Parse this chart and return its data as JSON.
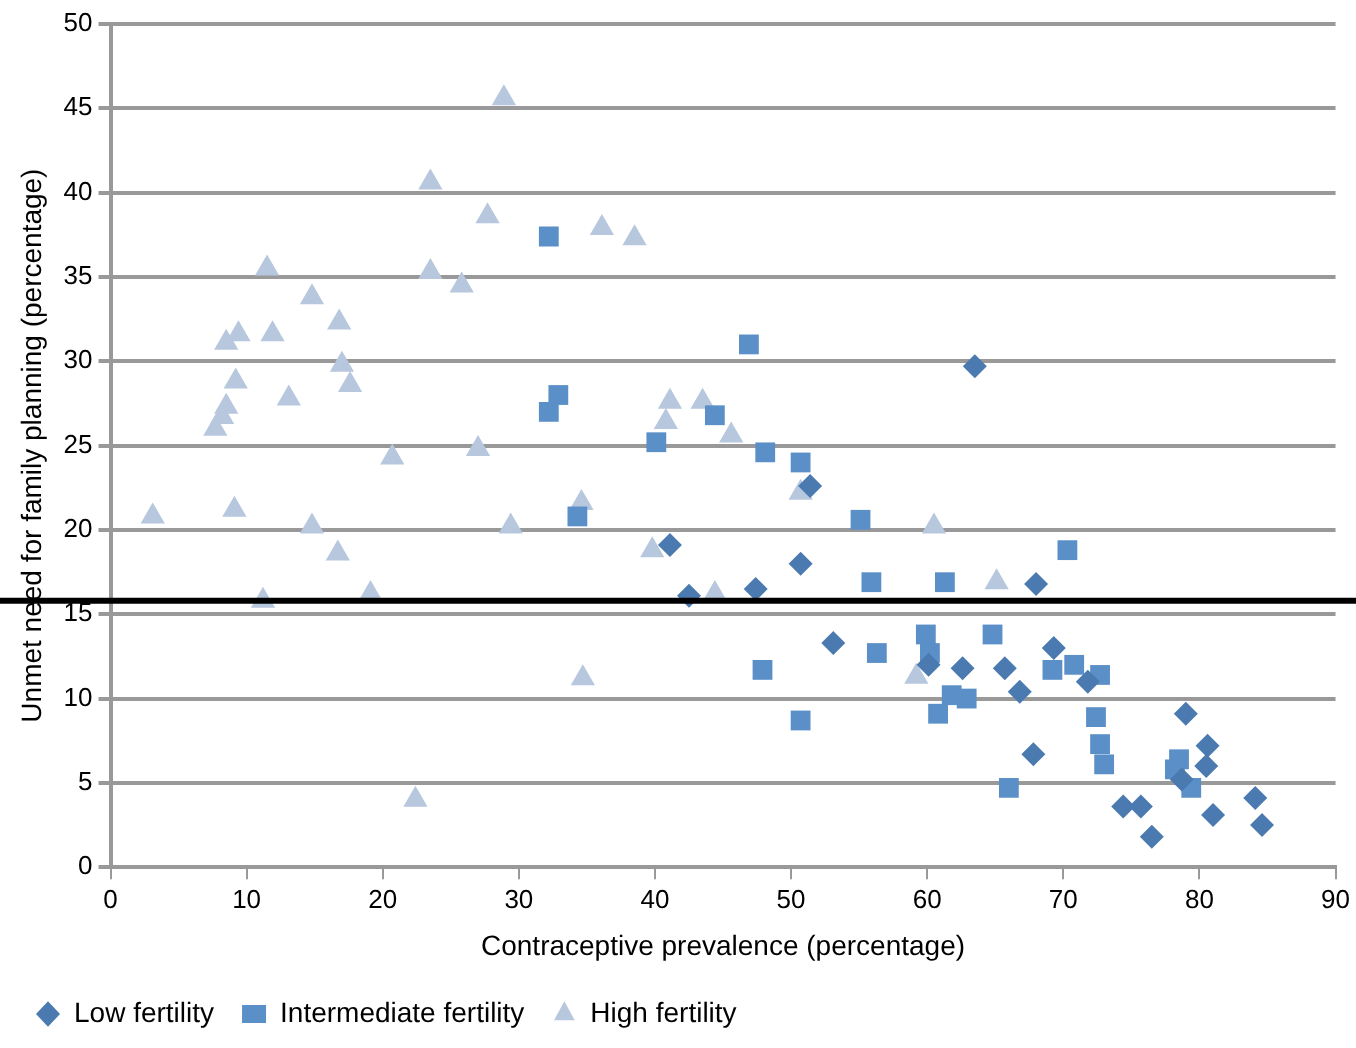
{
  "chart_data": {
    "type": "scatter",
    "xlabel": "Contraceptive prevalence (percentage)",
    "ylabel": "Unmet need for family planning (percentage)",
    "xlim": [
      0,
      90
    ],
    "xticks": [
      0,
      10,
      20,
      30,
      40,
      50,
      60,
      70,
      80,
      90
    ],
    "ylim": [
      0,
      50
    ],
    "yticks": [
      0,
      5,
      10,
      15,
      20,
      25,
      30,
      35,
      40,
      45,
      50
    ],
    "grid": "y",
    "legend": "bottom left",
    "ref_lines": [
      {
        "axis": "y",
        "value": 15.8,
        "color": "#000000"
      }
    ],
    "series": [
      {
        "name": "Low fertility",
        "color": "#4a7ab0",
        "marker": "diamond",
        "x": [
          41.1,
          42.5,
          47.4,
          50.7,
          51.4,
          53.1,
          63.5,
          60.1,
          62.6,
          65.7,
          66.8,
          68,
          69.3,
          71.8,
          67.8,
          79,
          80.6,
          80.5,
          78.7,
          74.4,
          75.7,
          76.5,
          81,
          84.1,
          84.6
        ],
        "values": [
          19.1,
          16.1,
          16.5,
          18,
          22.6,
          13.3,
          29.7,
          12,
          11.8,
          11.8,
          10.4,
          16.8,
          13,
          11,
          6.7,
          9.1,
          7.2,
          6,
          5.2,
          3.6,
          3.6,
          1.8,
          3.1,
          4.1,
          2.5
        ]
      },
      {
        "name": "Intermediate fertility",
        "color": "#5b8fc7",
        "marker": "square",
        "x": [
          32.2,
          32.9,
          32.2,
          34.3,
          46.9,
          44.4,
          40.1,
          48.1,
          50.7,
          55.1,
          55.9,
          61.3,
          70.3,
          47.9,
          50.7,
          56.3,
          59.9,
          60.2,
          60.8,
          61.8,
          62.9,
          64.8,
          66,
          69.2,
          70.8,
          72.7,
          72.4,
          72.7,
          73,
          78.5,
          78.2,
          79.4
        ],
        "values": [
          37.4,
          28,
          27,
          20.8,
          31,
          26.8,
          25.2,
          24.6,
          24,
          20.6,
          16.9,
          16.9,
          18.8,
          11.7,
          8.7,
          12.7,
          13.8,
          12.7,
          9.1,
          10.2,
          10,
          13.8,
          4.7,
          11.7,
          12,
          11.4,
          8.9,
          7.3,
          6.1,
          6.4,
          5.8,
          4.7
        ]
      },
      {
        "name": "High fertility",
        "color": "#b7c7de",
        "marker": "triangle",
        "x": [
          28.9,
          23.5,
          27.7,
          11.5,
          23.5,
          25.8,
          14.8,
          16.8,
          9.4,
          8.5,
          11.9,
          17,
          17.6,
          9.2,
          13.1,
          8.5,
          8.2,
          7.7,
          20.7,
          27,
          36.1,
          38.5,
          41.1,
          43.5,
          40.8,
          45.6,
          50.7,
          60.5,
          39.8,
          3.1,
          9.1,
          14.8,
          16.7,
          11.2,
          19.1,
          29.4,
          34.6,
          34.7,
          22.4,
          65.1,
          59.2,
          44.4
        ],
        "values": [
          45.6,
          40.6,
          38.6,
          35.5,
          35.3,
          34.5,
          33.8,
          32.3,
          31.6,
          31.1,
          31.6,
          29.8,
          28.6,
          28.8,
          27.8,
          27.3,
          26.7,
          26,
          24.3,
          24.8,
          37.9,
          37.3,
          27.6,
          27.6,
          26.4,
          25.6,
          22.2,
          20.2,
          18.8,
          20.8,
          21.2,
          20.2,
          18.6,
          15.8,
          16.2,
          20.2,
          21.6,
          11.2,
          4,
          16.9,
          11.3,
          16.2
        ]
      }
    ]
  }
}
